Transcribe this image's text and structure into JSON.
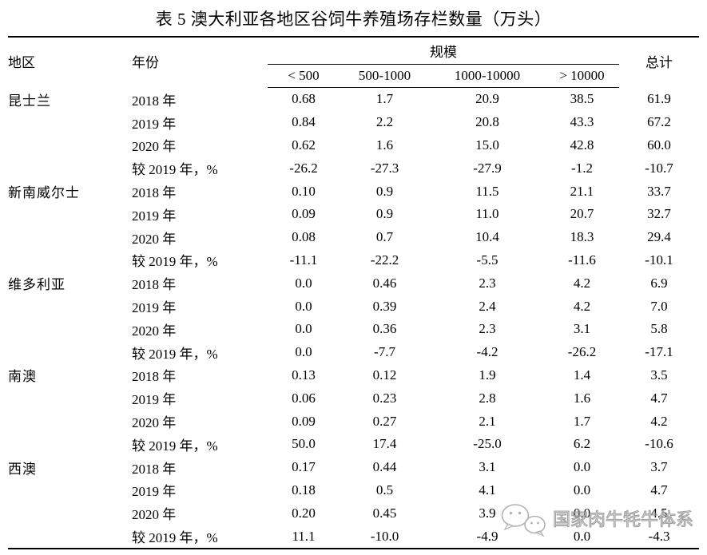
{
  "title": "表 5 澳大利亚各地区谷饲牛养殖场存栏数量（万头）",
  "table": {
    "header": {
      "region": "地区",
      "year": "年份",
      "scale": "规模",
      "total": "总计",
      "scale_cols": [
        "< 500",
        "500-1000",
        "1000-10000",
        "> 10000"
      ]
    },
    "groups": [
      {
        "region": "昆士兰",
        "rows": [
          {
            "year": "2018 年",
            "values": [
              "0.68",
              "1.7",
              "20.9",
              "38.5",
              "61.9"
            ]
          },
          {
            "year": "2019 年",
            "values": [
              "0.84",
              "2.2",
              "20.8",
              "43.3",
              "67.2"
            ]
          },
          {
            "year": "2020 年",
            "values": [
              "0.62",
              "1.6",
              "15.0",
              "42.8",
              "60.0"
            ]
          },
          {
            "year": "较 2019 年，%",
            "values": [
              "-26.2",
              "-27.3",
              "-27.9",
              "-1.2",
              "-10.7"
            ]
          }
        ]
      },
      {
        "region": "新南威尔士",
        "rows": [
          {
            "year": "2018 年",
            "values": [
              "0.10",
              "0.9",
              "11.5",
              "21.1",
              "33.7"
            ]
          },
          {
            "year": "2019 年",
            "values": [
              "0.09",
              "0.9",
              "11.0",
              "20.7",
              "32.7"
            ]
          },
          {
            "year": "2020 年",
            "values": [
              "0.08",
              "0.7",
              "10.4",
              "18.3",
              "29.4"
            ]
          },
          {
            "year": "较 2019 年，%",
            "values": [
              "-11.1",
              "-22.2",
              "-5.5",
              "-11.6",
              "-10.1"
            ]
          }
        ]
      },
      {
        "region": "维多利亚",
        "rows": [
          {
            "year": "2018 年",
            "values": [
              "0.0",
              "0.46",
              "2.3",
              "4.2",
              "6.9"
            ]
          },
          {
            "year": "2019 年",
            "values": [
              "0.0",
              "0.39",
              "2.4",
              "4.2",
              "7.0"
            ]
          },
          {
            "year": "2020 年",
            "values": [
              "0.0",
              "0.36",
              "2.3",
              "3.1",
              "5.8"
            ]
          },
          {
            "year": "较 2019 年，%",
            "values": [
              "0.0",
              "-7.7",
              "-4.2",
              "-26.2",
              "-17.1"
            ]
          }
        ]
      },
      {
        "region": "南澳",
        "rows": [
          {
            "year": "2018 年",
            "values": [
              "0.13",
              "0.12",
              "1.9",
              "1.4",
              "3.5"
            ]
          },
          {
            "year": "2019 年",
            "values": [
              "0.06",
              "0.23",
              "2.8",
              "1.6",
              "4.7"
            ]
          },
          {
            "year": "2020 年",
            "values": [
              "0.09",
              "0.27",
              "2.1",
              "1.7",
              "4.2"
            ]
          },
          {
            "year": "较 2019 年，%",
            "values": [
              "50.0",
              "17.4",
              "-25.0",
              "6.2",
              "-10.6"
            ]
          }
        ]
      },
      {
        "region": "西澳",
        "rows": [
          {
            "year": "2018 年",
            "values": [
              "0.17",
              "0.44",
              "3.1",
              "0.0",
              "3.7"
            ]
          },
          {
            "year": "2019 年",
            "values": [
              "0.18",
              "0.5",
              "4.1",
              "0.0",
              "4.7"
            ]
          },
          {
            "year": "2020 年",
            "values": [
              "0.20",
              "0.45",
              "3.9",
              "0.0",
              "4.5"
            ]
          },
          {
            "year": "较 2019 年，%",
            "values": [
              "11.1",
              "-10.0",
              "-4.9",
              "0.0",
              "-4.3"
            ]
          }
        ]
      }
    ]
  },
  "watermark": {
    "text": "国家肉牛牦牛体系",
    "logo": "wechat-bubbles-icon",
    "color": "#9e9e9e"
  },
  "colors": {
    "text": "#000000",
    "background": "#ffffff",
    "rule": "#000000"
  }
}
